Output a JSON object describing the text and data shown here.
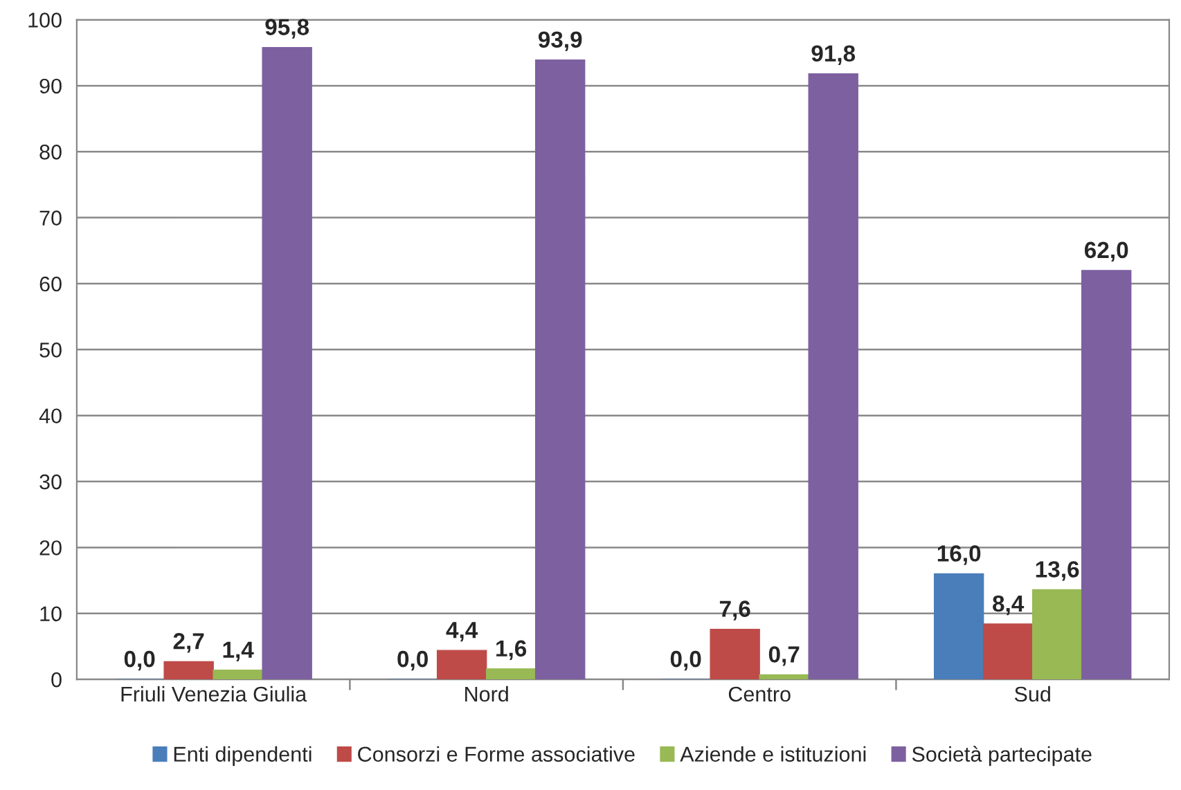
{
  "chart_data": {
    "type": "bar",
    "categories": [
      "Friuli Venezia Giulia",
      "Nord",
      "Centro",
      "Sud"
    ],
    "series": [
      {
        "name": "Enti dipendenti",
        "color": "#4a7ebb",
        "values": [
          0.0,
          0.0,
          0.0,
          16.0
        ],
        "value_labels": [
          "0,0",
          "0,0",
          "0,0",
          "16,0"
        ]
      },
      {
        "name": "Consorzi e Forme associative",
        "color": "#be4b48",
        "values": [
          2.7,
          4.4,
          7.6,
          8.4
        ],
        "value_labels": [
          "2,7",
          "4,4",
          "7,6",
          "8,4"
        ]
      },
      {
        "name": "Aziende e istituzioni",
        "color": "#98b954",
        "values": [
          1.4,
          1.6,
          0.7,
          13.6
        ],
        "value_labels": [
          "1,4",
          "1,6",
          "0,7",
          "13,6"
        ]
      },
      {
        "name": "Società partecipate",
        "color": "#7d60a0",
        "values": [
          95.8,
          93.9,
          91.8,
          62.0
        ],
        "value_labels": [
          "95,8",
          "93,9",
          "91,8",
          "62,0"
        ]
      }
    ],
    "ylim": [
      0,
      100
    ],
    "yticks": [
      0,
      10,
      20,
      30,
      40,
      50,
      60,
      70,
      80,
      90,
      100
    ],
    "grid": "y",
    "legend": "bottom"
  }
}
